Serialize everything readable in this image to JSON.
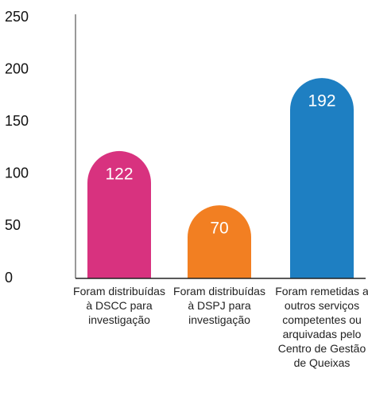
{
  "chart_data": {
    "type": "bar",
    "categories": [
      "Foram distribuídas à DSCC para investigação",
      "Foram distribuídas à DSPJ para investigação",
      "Foram remetidas a outros serviços competentes ou arquivadas pelo Centro de Gestão de Queixas"
    ],
    "values": [
      122,
      70,
      192
    ],
    "colors": [
      "#d8327f",
      "#f27f22",
      "#1e7fc2"
    ],
    "ylim": [
      0,
      250
    ],
    "yticks": [
      0,
      50,
      100,
      150,
      200,
      250
    ],
    "grid": false
  }
}
